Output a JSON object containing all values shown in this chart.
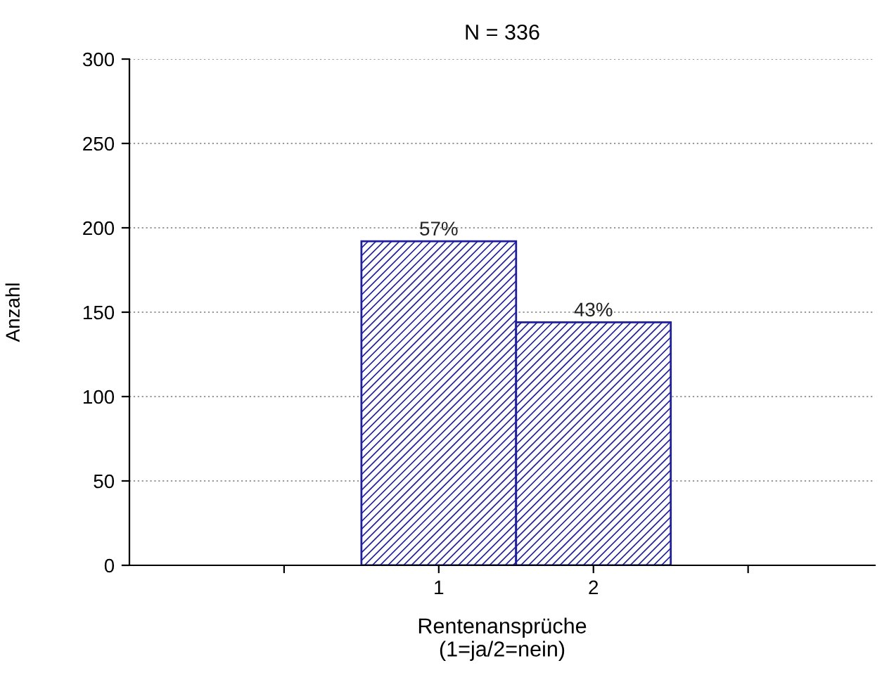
{
  "chart_data": {
    "type": "bar",
    "title": "N = 336",
    "xlabel": "Rentenansprüche\n(1=ja/2=nein)",
    "ylabel": "Anzahl",
    "categories": [
      null,
      "1",
      "2",
      null
    ],
    "values": [
      null,
      192,
      144,
      null
    ],
    "annotations": [
      {
        "text": "57%",
        "x": "1",
        "y": 192
      },
      {
        "text": "43%",
        "x": "2",
        "y": 144
      }
    ],
    "color": "#1f1f9e",
    "ylim": [
      0,
      300
    ],
    "yticks": [
      0,
      50,
      100,
      150,
      200,
      250,
      300
    ],
    "grid": "y"
  }
}
